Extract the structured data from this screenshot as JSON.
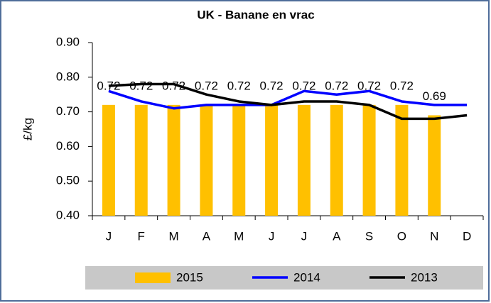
{
  "chart_data": {
    "type": "bar",
    "title": "UK - Banane en vrac",
    "y_label": "£/kg",
    "categories": [
      "J",
      "F",
      "M",
      "A",
      "M",
      "J",
      "J",
      "A",
      "S",
      "O",
      "N",
      "D"
    ],
    "ylim": [
      0.4,
      0.9
    ],
    "yticks": [
      {
        "value": 0.4,
        "label": "0.40"
      },
      {
        "value": 0.5,
        "label": "0.50"
      },
      {
        "value": 0.6,
        "label": "0.60"
      },
      {
        "value": 0.7,
        "label": "0.70"
      },
      {
        "value": 0.8,
        "label": "0.80"
      },
      {
        "value": 0.9,
        "label": "0.90"
      }
    ],
    "series": [
      {
        "name": "2015",
        "type": "bar",
        "color": "#ffc000",
        "values": [
          0.72,
          0.72,
          0.72,
          0.72,
          0.72,
          0.72,
          0.72,
          0.72,
          0.72,
          0.72,
          0.69,
          null
        ]
      },
      {
        "name": "2014",
        "type": "line",
        "color": "#0000ff",
        "values": [
          0.76,
          0.73,
          0.71,
          0.72,
          0.72,
          0.72,
          0.76,
          0.75,
          0.76,
          0.73,
          0.72,
          0.72
        ]
      },
      {
        "name": "2013",
        "type": "line",
        "color": "#000000",
        "values": [
          0.775,
          0.78,
          0.78,
          0.75,
          0.73,
          0.72,
          0.73,
          0.73,
          0.72,
          0.68,
          0.68,
          0.69
        ]
      }
    ]
  }
}
